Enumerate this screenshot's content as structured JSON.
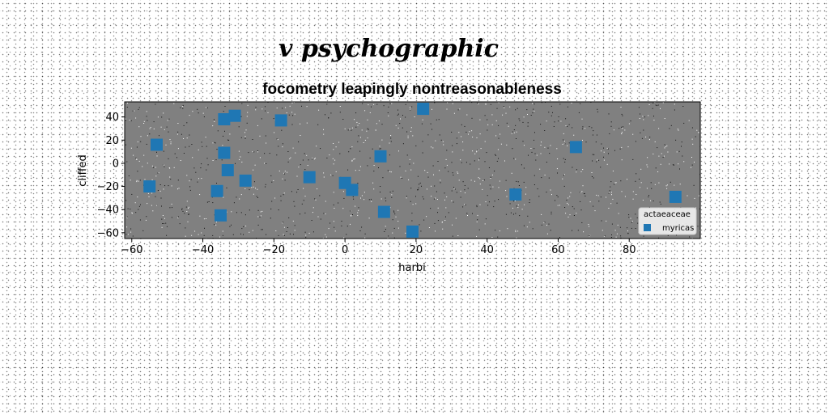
{
  "chart_data": {
    "type": "scatter",
    "suptitle": "v psychographic",
    "title": "focometry leapingly nontreasonableness",
    "xlabel": "harbi",
    "ylabel": "cliffed",
    "xlim": [
      -62,
      100
    ],
    "ylim": [
      -65,
      53
    ],
    "xticks": [
      -60,
      -40,
      -20,
      0,
      20,
      40,
      60,
      80
    ],
    "yticks": [
      -60,
      -40,
      -20,
      0,
      20,
      40
    ],
    "xtick_labels": [
      "−60",
      "−40",
      "−20",
      "0",
      "20",
      "40",
      "60",
      "80"
    ],
    "ytick_labels": [
      "−60",
      "−40",
      "−20",
      "0",
      "20",
      "40"
    ],
    "grid": false,
    "plot_background": "#808080",
    "legend": {
      "title": "actaeaceae",
      "placement": "lower-right",
      "entries": [
        "myricas"
      ]
    },
    "series": [
      {
        "name": "myricas",
        "marker": "square",
        "color": "#1f77b4",
        "points": [
          [
            -55,
            -20
          ],
          [
            -53,
            16
          ],
          [
            -36,
            -24
          ],
          [
            -35,
            -45
          ],
          [
            -34,
            38
          ],
          [
            -34,
            9
          ],
          [
            -33,
            -6
          ],
          [
            -31,
            41
          ],
          [
            -28,
            -15
          ],
          [
            -18,
            37
          ],
          [
            -10,
            -12
          ],
          [
            0,
            -17
          ],
          [
            2,
            -23
          ],
          [
            10,
            6
          ],
          [
            11,
            -42
          ],
          [
            19,
            -59
          ],
          [
            22,
            47
          ],
          [
            48,
            -27
          ],
          [
            65,
            14
          ],
          [
            93,
            -29
          ]
        ]
      }
    ]
  }
}
